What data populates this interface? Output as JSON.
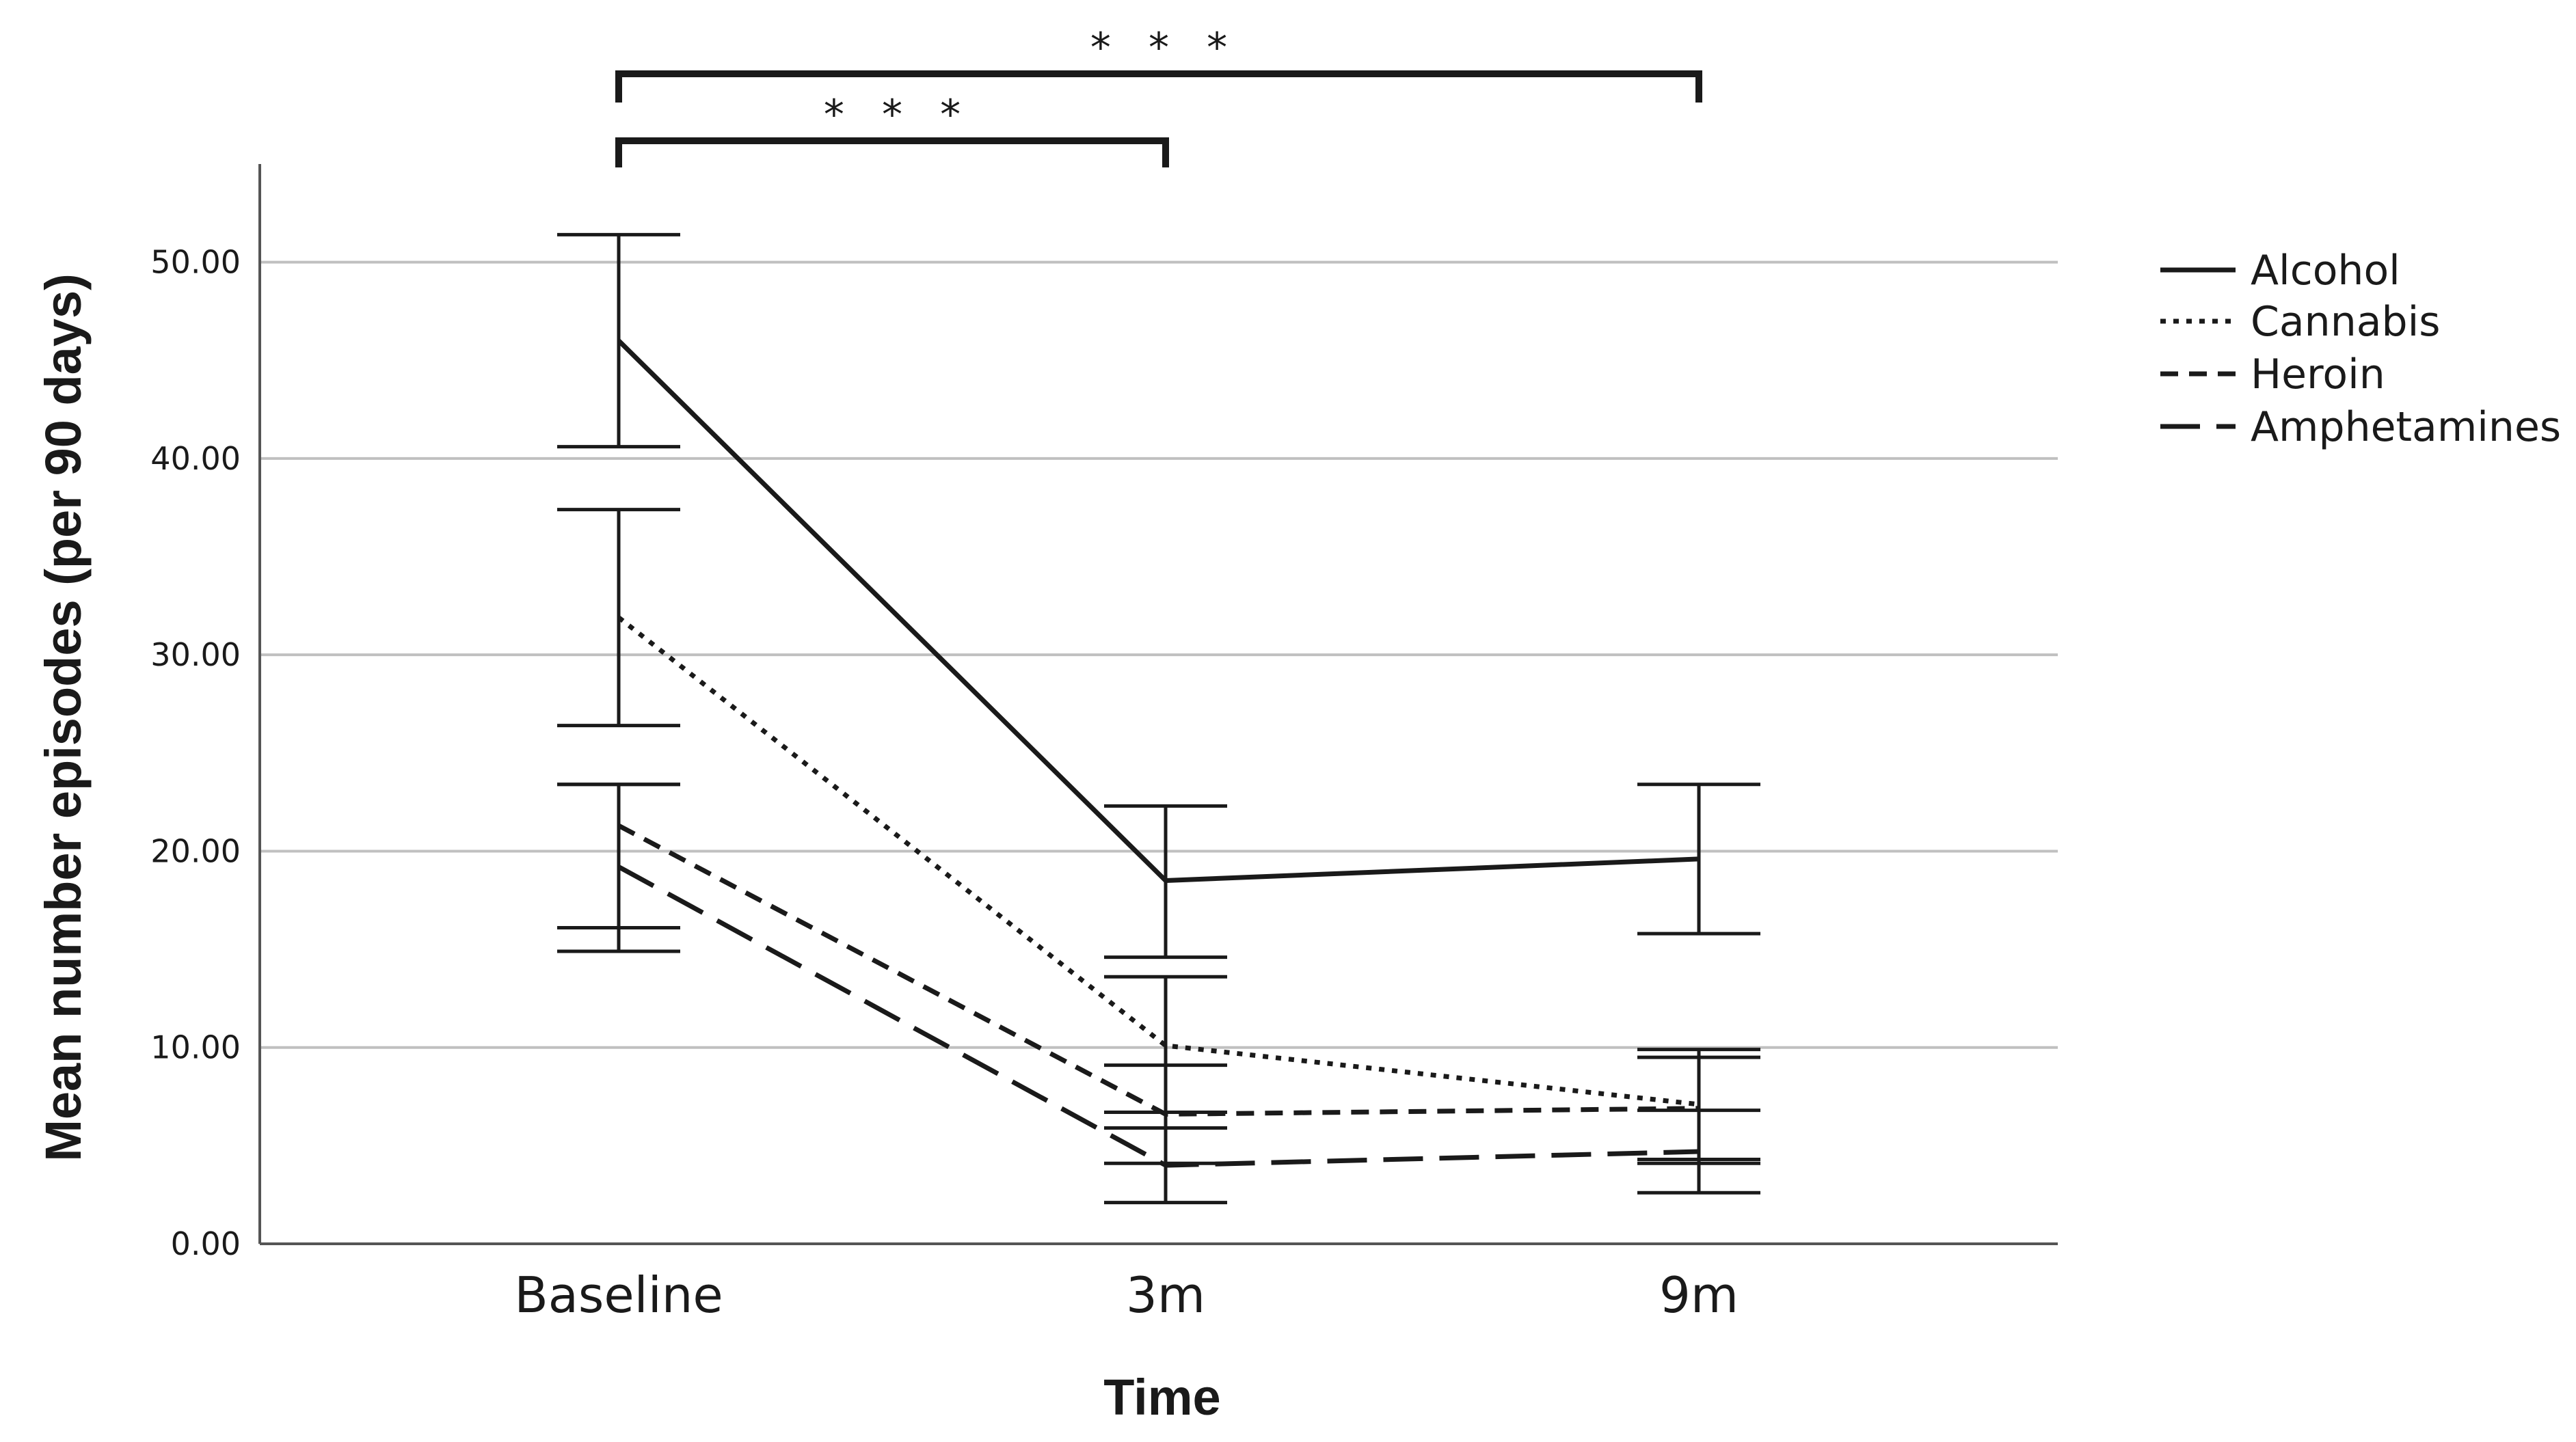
{
  "chart_data": {
    "type": "line",
    "xlabel": "Time",
    "ylabel": "Mean number episodes (per 90 days)",
    "categories": [
      "Baseline",
      "3m",
      "9m"
    ],
    "ylim": [
      0,
      55
    ],
    "yticks": [
      0,
      10,
      20,
      30,
      40,
      50
    ],
    "ytick_labels": [
      "0.00",
      "10.00",
      "20.00",
      "30.00",
      "40.00",
      "50.00"
    ],
    "grid": "horizontal",
    "legend_position": "right",
    "error_bars": true,
    "series": [
      {
        "name": "Alcohol",
        "line_style": "solid",
        "values": [
          46.0,
          18.5,
          19.6
        ],
        "err_low": [
          40.6,
          14.6,
          15.8
        ],
        "err_high": [
          51.4,
          22.3,
          23.4
        ]
      },
      {
        "name": "Cannabis",
        "line_style": "dotted",
        "values": [
          31.9,
          10.1,
          7.1
        ],
        "err_low": [
          26.4,
          6.7,
          4.3
        ],
        "err_high": [
          37.4,
          13.6,
          9.9
        ]
      },
      {
        "name": "Heroin",
        "line_style": "dashed",
        "values": [
          21.3,
          6.6,
          6.9
        ],
        "err_low": [
          14.9,
          4.1,
          4.1
        ],
        "err_high": [
          23.4,
          9.1,
          9.5
        ]
      },
      {
        "name": "Amphetamines",
        "line_style": "longdash",
        "values": [
          19.2,
          4.0,
          4.7
        ],
        "err_low": [
          16.1,
          2.1,
          2.6
        ],
        "err_high": [
          23.4,
          5.9,
          6.8
        ]
      }
    ],
    "annotations": [
      {
        "from": "Baseline",
        "to": "9m",
        "label": "* * *"
      },
      {
        "from": "Baseline",
        "to": "3m",
        "label": "* * *"
      }
    ]
  },
  "colors": {
    "line": "#1a1a1a",
    "grid": "#c0c0c0",
    "axis": "#555555",
    "background": "#ffffff"
  }
}
